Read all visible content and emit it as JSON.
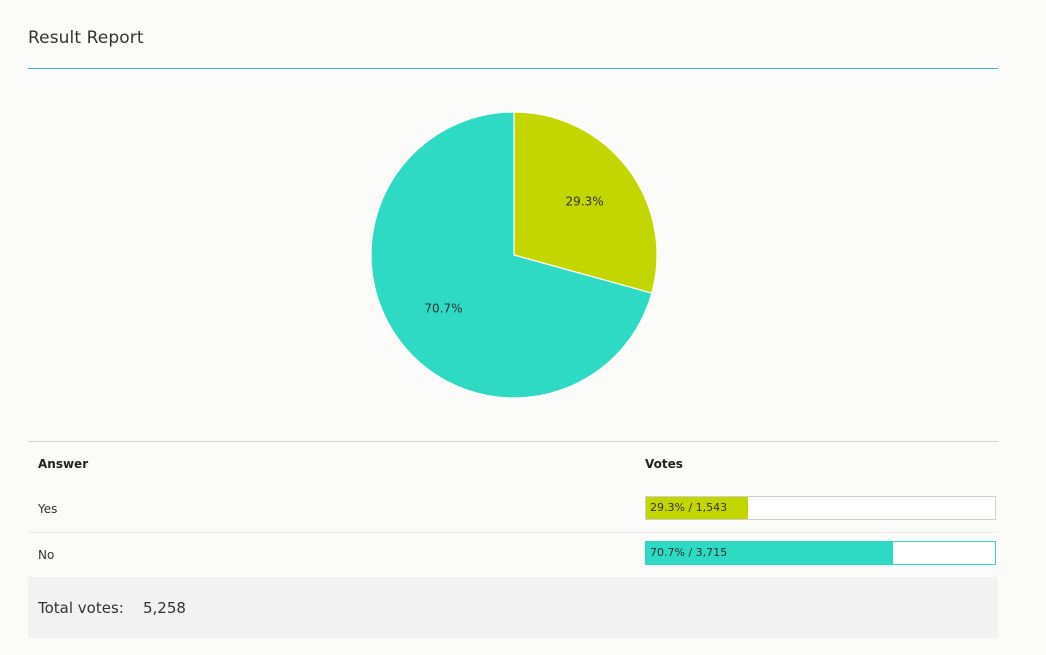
{
  "report": {
    "title": "Result Report"
  },
  "colors": {
    "yes": "#c4d600",
    "no": "#2fdac4",
    "title_rule": "#3bb4c1"
  },
  "chart_data": {
    "type": "pie",
    "categories": [
      "Yes",
      "No"
    ],
    "values": [
      29.3,
      70.7
    ],
    "labels": [
      "29.3%",
      "70.7%"
    ],
    "colors": [
      "#c4d600",
      "#2fdac4"
    ]
  },
  "table": {
    "headers": {
      "answer": "Answer",
      "votes": "Votes"
    },
    "rows": [
      {
        "answer": "Yes",
        "percent": 29.3,
        "votes_text": "29.3% / 1,543"
      },
      {
        "answer": "No",
        "percent": 70.7,
        "votes_text": "70.7% / 3,715"
      }
    ]
  },
  "total": {
    "label": "Total votes:",
    "value": "5,258"
  }
}
